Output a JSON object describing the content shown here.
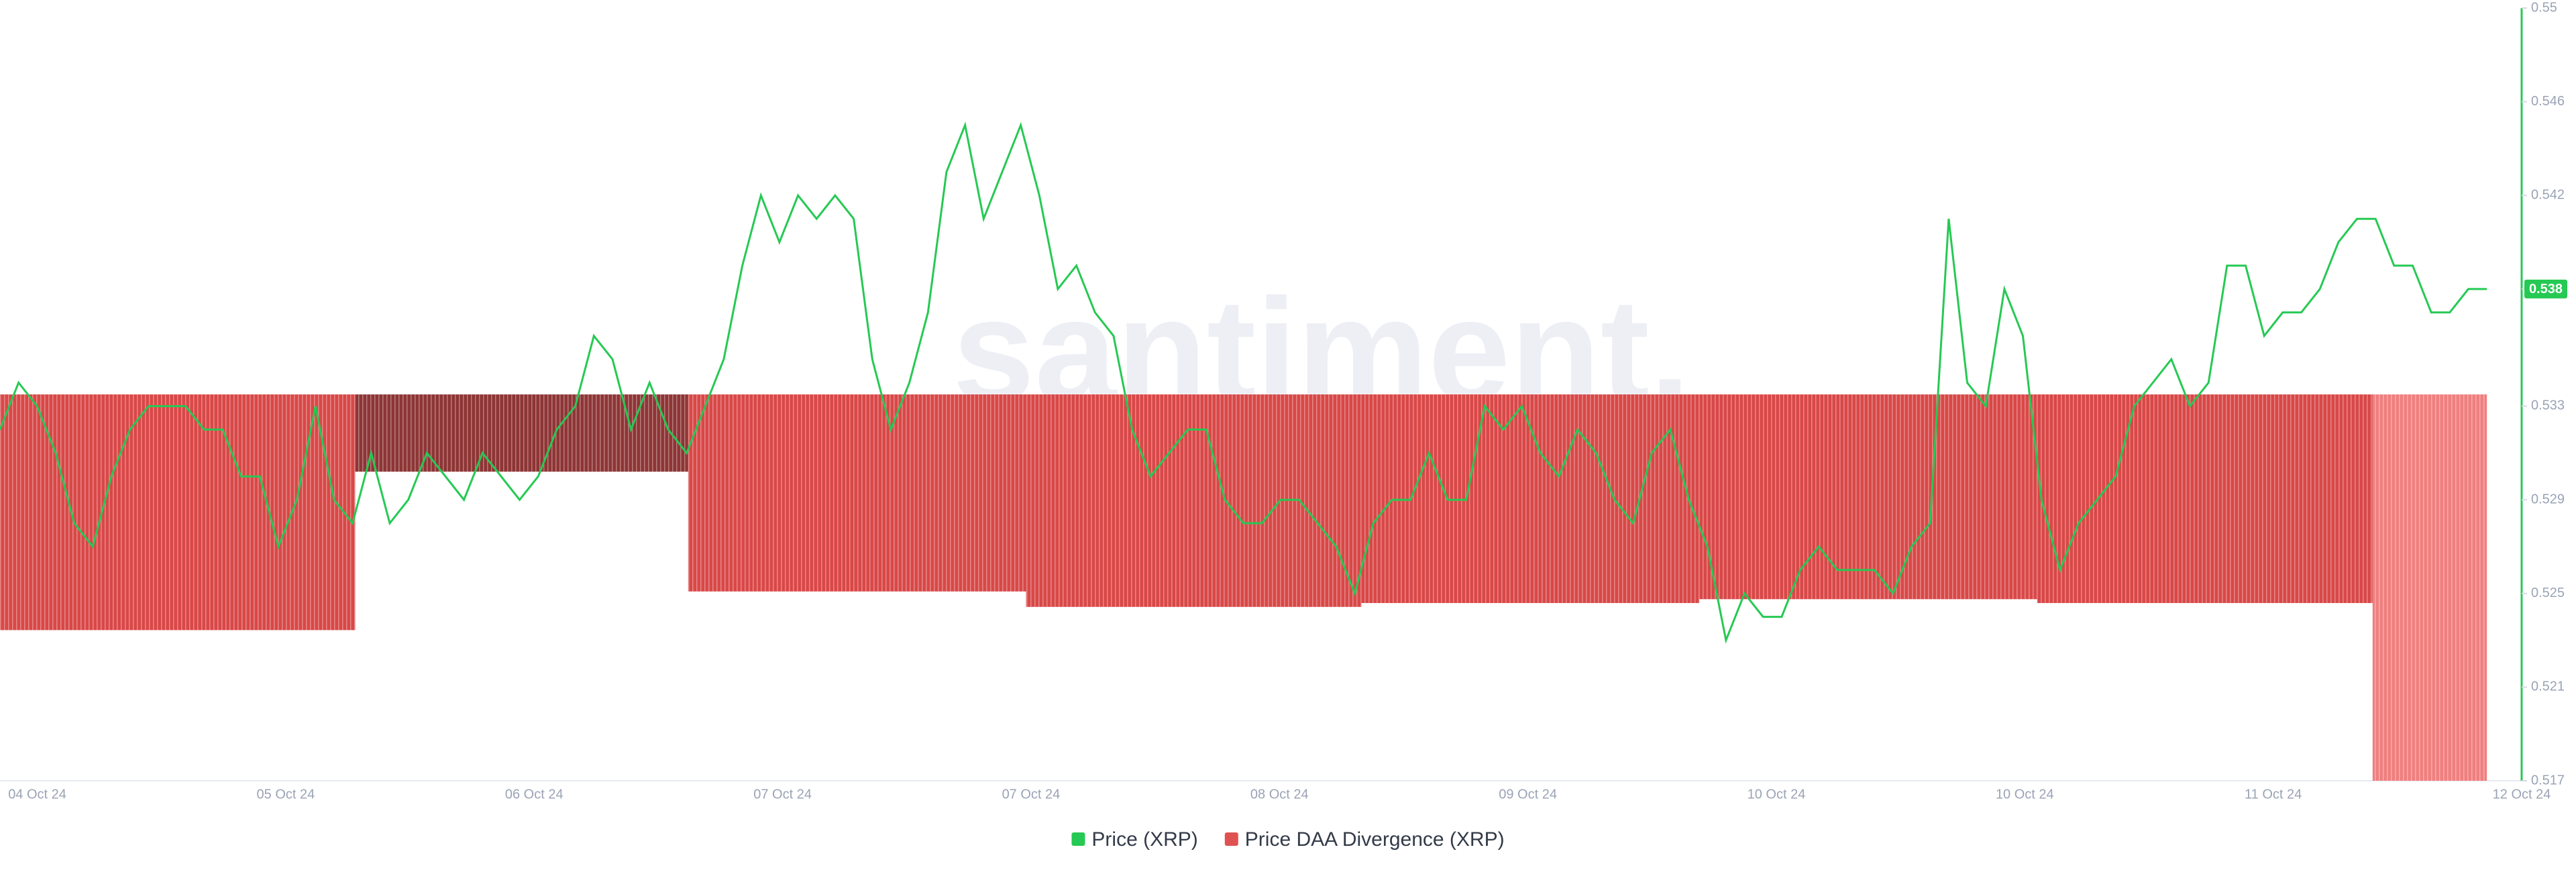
{
  "chart_data": {
    "type": "line",
    "watermark": "santiment.",
    "x_labels": [
      "04 Oct 24",
      "05 Oct 24",
      "06 Oct 24",
      "07 Oct 24",
      "07 Oct 24",
      "08 Oct 24",
      "09 Oct 24",
      "10 Oct 24",
      "10 Oct 24",
      "11 Oct 24",
      "12 Oct 24"
    ],
    "xlim": [
      -0.15,
      10
    ],
    "ylim": [
      -1,
      1
    ],
    "y2lim": [
      0.517,
      0.55
    ],
    "y2ticks": [
      0.517,
      0.521,
      0.525,
      0.529,
      0.533,
      0.538,
      0.542,
      0.546,
      0.55
    ],
    "series": [
      {
        "name": "Price (XRP)",
        "color": "#26c953",
        "axis": "y2",
        "values": [
          0.532,
          0.534,
          0.533,
          0.531,
          0.528,
          0.527,
          0.53,
          0.532,
          0.533,
          0.533,
          0.533,
          0.532,
          0.532,
          0.53,
          0.53,
          0.527,
          0.529,
          0.533,
          0.529,
          0.528,
          0.531,
          0.528,
          0.529,
          0.531,
          0.53,
          0.529,
          0.531,
          0.53,
          0.529,
          0.53,
          0.532,
          0.533,
          0.536,
          0.535,
          0.532,
          0.534,
          0.532,
          0.531,
          0.533,
          0.535,
          0.539,
          0.542,
          0.54,
          0.542,
          0.541,
          0.542,
          0.541,
          0.535,
          0.532,
          0.534,
          0.537,
          0.543,
          0.545,
          0.541,
          0.543,
          0.545,
          0.542,
          0.538,
          0.539,
          0.537,
          0.536,
          0.532,
          0.53,
          0.531,
          0.532,
          0.532,
          0.529,
          0.528,
          0.528,
          0.529,
          0.529,
          0.528,
          0.527,
          0.525,
          0.528,
          0.529,
          0.529,
          0.531,
          0.529,
          0.529,
          0.533,
          0.532,
          0.533,
          0.531,
          0.53,
          0.532,
          0.531,
          0.529,
          0.528,
          0.531,
          0.532,
          0.529,
          0.527,
          0.523,
          0.525,
          0.524,
          0.524,
          0.526,
          0.527,
          0.526,
          0.526,
          0.526,
          0.525,
          0.527,
          0.528,
          0.541,
          0.534,
          0.533,
          0.538,
          0.536,
          0.529,
          0.526,
          0.528,
          0.529,
          0.53,
          0.533,
          0.534,
          0.535,
          0.533,
          0.534,
          0.539,
          0.539,
          0.536,
          0.537,
          0.537,
          0.538,
          0.54,
          0.541,
          0.541,
          0.539,
          0.539,
          0.537,
          0.537,
          0.538,
          0.538
        ]
      },
      {
        "name": "Price DAA Divergence (XRP)",
        "type": "bar",
        "color": "#e05252",
        "colors": [
          "#d94848",
          "#8e3535",
          "#d94848",
          "#d94848",
          "#d94848",
          "#d94848",
          "#d94848",
          "#f07f7f"
        ],
        "bins": [
          -0.15,
          1.28,
          2.62,
          3.98,
          5.33,
          6.69,
          8.05,
          9.4,
          9.86
        ],
        "values": [
          -0.61,
          -0.2,
          -0.51,
          -0.55,
          -0.54,
          -0.53,
          -0.54,
          -1.0
        ]
      }
    ]
  }
}
